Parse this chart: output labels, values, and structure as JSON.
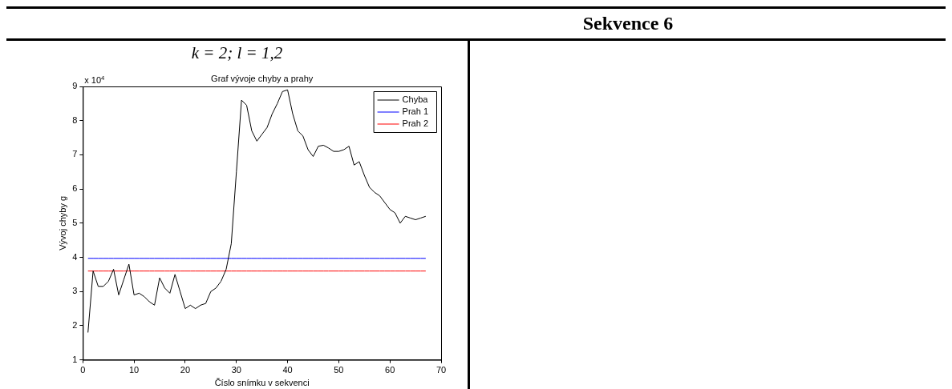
{
  "chart_data": {
    "type": "line",
    "title": "Sekvence 6",
    "subtitle": "k = 2;  l = 1,2",
    "annotations": [
      "Graf vývoje chyby a prahy",
      "x 10$^{4}$"
    ],
    "xlabel": "Číslo snímku v sekvenci",
    "ylabel": "Vývoj chyby g",
    "x": [
      1,
      2,
      3,
      4,
      5,
      6,
      7,
      8,
      9,
      10,
      11,
      12,
      13,
      14,
      15,
      16,
      17,
      18,
      19,
      20,
      21,
      22,
      23,
      24,
      25,
      26,
      27,
      28,
      29,
      30,
      31,
      32,
      33,
      34,
      35,
      36,
      37,
      38,
      39,
      40,
      41,
      42,
      43,
      44,
      45,
      46,
      47,
      48,
      49,
      50,
      51,
      52,
      53,
      54,
      55,
      56,
      57,
      58,
      59,
      60,
      61,
      62,
      63,
      64,
      65,
      66,
      67
    ],
    "series": [
      {
        "name": "Chyba",
        "color": "#000000",
        "values": [
          1.8,
          3.6,
          3.15,
          3.15,
          3.3,
          3.65,
          2.9,
          3.35,
          3.8,
          2.9,
          2.95,
          2.85,
          2.7,
          2.6,
          3.4,
          3.1,
          2.95,
          3.5,
          3.0,
          2.5,
          2.6,
          2.5,
          2.6,
          2.65,
          3.0,
          3.1,
          3.3,
          3.65,
          4.4,
          6.5,
          8.6,
          8.45,
          7.7,
          7.4,
          7.6,
          7.8,
          8.2,
          8.5,
          8.85,
          8.9,
          8.2,
          7.7,
          7.55,
          7.15,
          6.95,
          7.25,
          7.28,
          7.2,
          7.1,
          7.1,
          7.15,
          7.25,
          6.7,
          6.8,
          6.4,
          6.05,
          5.9,
          5.8,
          5.6,
          5.4,
          5.3,
          5.0,
          5.2,
          5.15,
          5.1,
          5.15,
          5.2
        ]
      },
      {
        "name": "Prah 1",
        "color": "#0000ff",
        "values": [
          3.97,
          3.97,
          3.97,
          3.97,
          3.97,
          3.97,
          3.97,
          3.97,
          3.97,
          3.97,
          3.97,
          3.97,
          3.97,
          3.97,
          3.97,
          3.97,
          3.97,
          3.97,
          3.97,
          3.97,
          3.97,
          3.97,
          3.97,
          3.97,
          3.97,
          3.97,
          3.97,
          3.97,
          3.97,
          3.97,
          3.97,
          3.97,
          3.97,
          3.97,
          3.97,
          3.97,
          3.97,
          3.97,
          3.97,
          3.97,
          3.97,
          3.97,
          3.97,
          3.97,
          3.97,
          3.97,
          3.97,
          3.97,
          3.97,
          3.97,
          3.97,
          3.97,
          3.97,
          3.97,
          3.97,
          3.97,
          3.97,
          3.97,
          3.97,
          3.97,
          3.97,
          3.97,
          3.97,
          3.97,
          3.97,
          3.97,
          3.97
        ]
      },
      {
        "name": "Prah 2",
        "color": "#ff0000",
        "values": [
          3.6,
          3.6,
          3.6,
          3.6,
          3.6,
          3.6,
          3.6,
          3.6,
          3.6,
          3.6,
          3.6,
          3.6,
          3.6,
          3.6,
          3.6,
          3.6,
          3.6,
          3.6,
          3.6,
          3.6,
          3.6,
          3.6,
          3.6,
          3.6,
          3.6,
          3.6,
          3.6,
          3.6,
          3.6,
          3.6,
          3.6,
          3.6,
          3.6,
          3.6,
          3.6,
          3.6,
          3.6,
          3.6,
          3.6,
          3.6,
          3.6,
          3.6,
          3.6,
          3.6,
          3.6,
          3.6,
          3.6,
          3.6,
          3.6,
          3.6,
          3.6,
          3.6,
          3.6,
          3.6,
          3.6,
          3.6,
          3.6,
          3.6,
          3.6,
          3.6,
          3.6,
          3.6,
          3.6,
          3.6,
          3.6,
          3.6,
          3.6
        ]
      }
    ],
    "xlim": [
      0,
      70
    ],
    "xticks": [
      0,
      10,
      20,
      30,
      40,
      50,
      60,
      70
    ],
    "ylim": [
      1,
      9
    ],
    "yticks": [
      1,
      2,
      3,
      4,
      5,
      6,
      7,
      8,
      9
    ],
    "legend": "top right",
    "grid": false,
    "marker": "none",
    "line_style": "solid"
  }
}
